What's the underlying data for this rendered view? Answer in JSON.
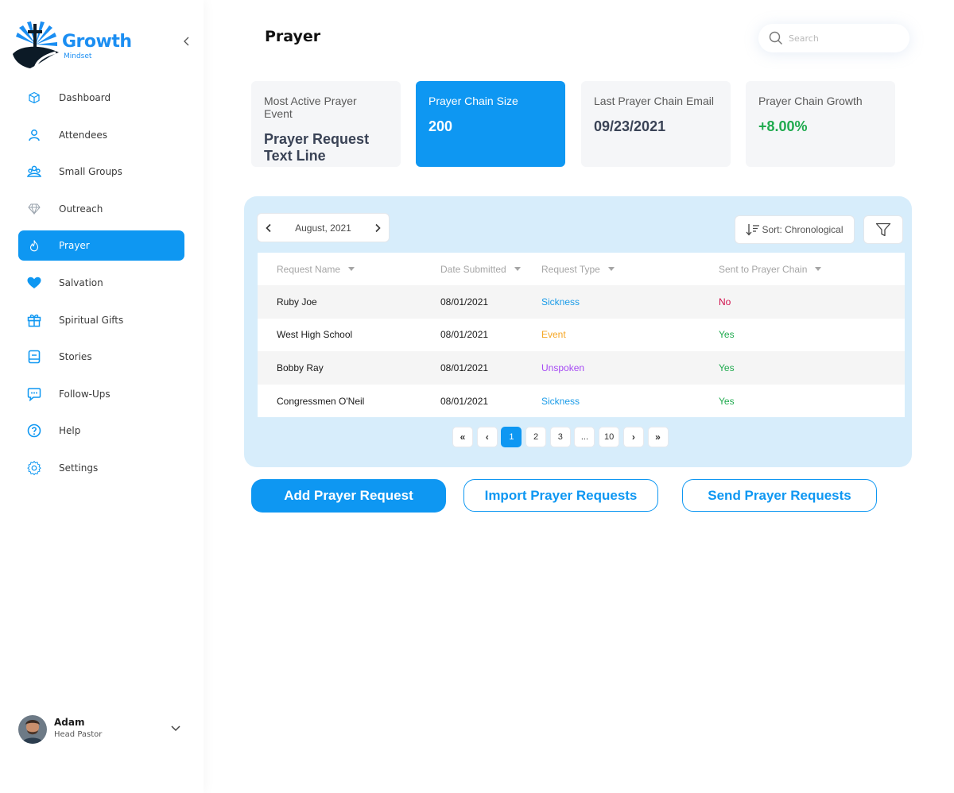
{
  "brand": {
    "name": "Growth",
    "tagline": "Mindset"
  },
  "sidebar": {
    "items": [
      {
        "label": "Dashboard",
        "icon": "cube-icon"
      },
      {
        "label": "Attendees",
        "icon": "user-icon"
      },
      {
        "label": "Small Groups",
        "icon": "group-icon"
      },
      {
        "label": "Outreach",
        "icon": "diamond-icon"
      },
      {
        "label": "Prayer",
        "icon": "flame-icon",
        "active": true
      },
      {
        "label": "Salvation",
        "icon": "heart-icon"
      },
      {
        "label": "Spiritual Gifts",
        "icon": "gift-icon"
      },
      {
        "label": "Stories",
        "icon": "book-icon"
      },
      {
        "label": "Follow-Ups",
        "icon": "chat-icon"
      },
      {
        "label": "Help",
        "icon": "help-icon"
      },
      {
        "label": "Settings",
        "icon": "gear-icon"
      }
    ]
  },
  "user": {
    "name": "Adam",
    "role": "Head Pastor"
  },
  "header": {
    "title": "Prayer",
    "search_placeholder": "Search"
  },
  "stats": [
    {
      "label": "Most Active Prayer Event",
      "value": "Prayer Request Text Line"
    },
    {
      "label": "Prayer Chain Size",
      "value": "200"
    },
    {
      "label": "Last Prayer Chain Email",
      "value": "09/23/2021"
    },
    {
      "label": "Prayer Chain Growth",
      "value": "+8.00%"
    }
  ],
  "toolbar": {
    "month": "August, 2021",
    "sort_label": "Sort: Chronological"
  },
  "table": {
    "columns": [
      "Request Name",
      "Date Submitted",
      "Request Type",
      "Sent to Prayer Chain"
    ],
    "rows": [
      {
        "name": "Ruby Joe",
        "date": "08/01/2021",
        "type": "Sickness",
        "sent": "No"
      },
      {
        "name": "West High School",
        "date": "08/01/2021",
        "type": "Event",
        "sent": "Yes"
      },
      {
        "name": "Bobby Ray",
        "date": "08/01/2021",
        "type": "Unspoken",
        "sent": "Yes"
      },
      {
        "name": "Congressmen O'Neil",
        "date": "08/01/2021",
        "type": "Sickness",
        "sent": "Yes"
      }
    ]
  },
  "pagination": {
    "first": "«",
    "prev": "‹",
    "pages": [
      "1",
      "2",
      "3",
      "...",
      "10"
    ],
    "next": "›",
    "last": "»",
    "current": "1"
  },
  "actions": {
    "add_label": "Add Prayer Request",
    "import_label": "Import Prayer Requests",
    "send_label": "Send Prayer Requests"
  },
  "colors": {
    "accent": "#0e97f2",
    "type_sickness": "#1a9be8",
    "type_event": "#f5a623",
    "type_unspoken": "#a64bf4",
    "sent_yes": "#1faa4e",
    "sent_no": "#d0104c"
  }
}
